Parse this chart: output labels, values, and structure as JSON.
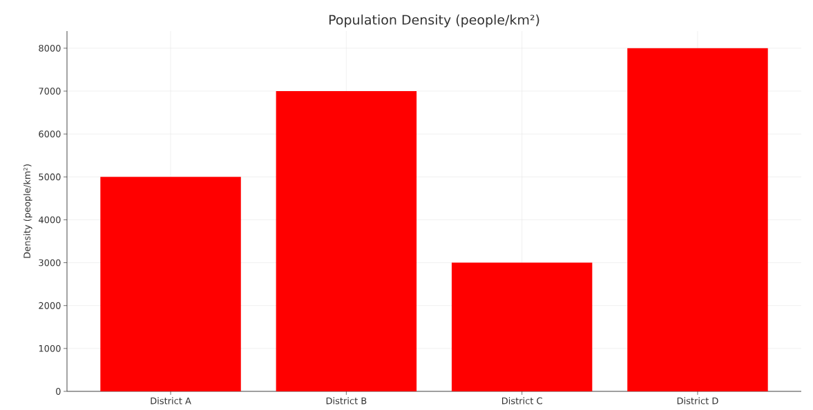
{
  "chart_data": {
    "type": "bar",
    "title": "Population Density (people/km²)",
    "ylabel": "Density (people/km²)",
    "categories": [
      "District A",
      "District B",
      "District C",
      "District D"
    ],
    "values": [
      5000,
      7000,
      3000,
      8000
    ],
    "color": "#ff0000",
    "ylim": [
      0,
      8400
    ],
    "yticks": [
      0,
      1000,
      2000,
      3000,
      4000,
      5000,
      6000,
      7000,
      8000
    ],
    "grid": true
  }
}
